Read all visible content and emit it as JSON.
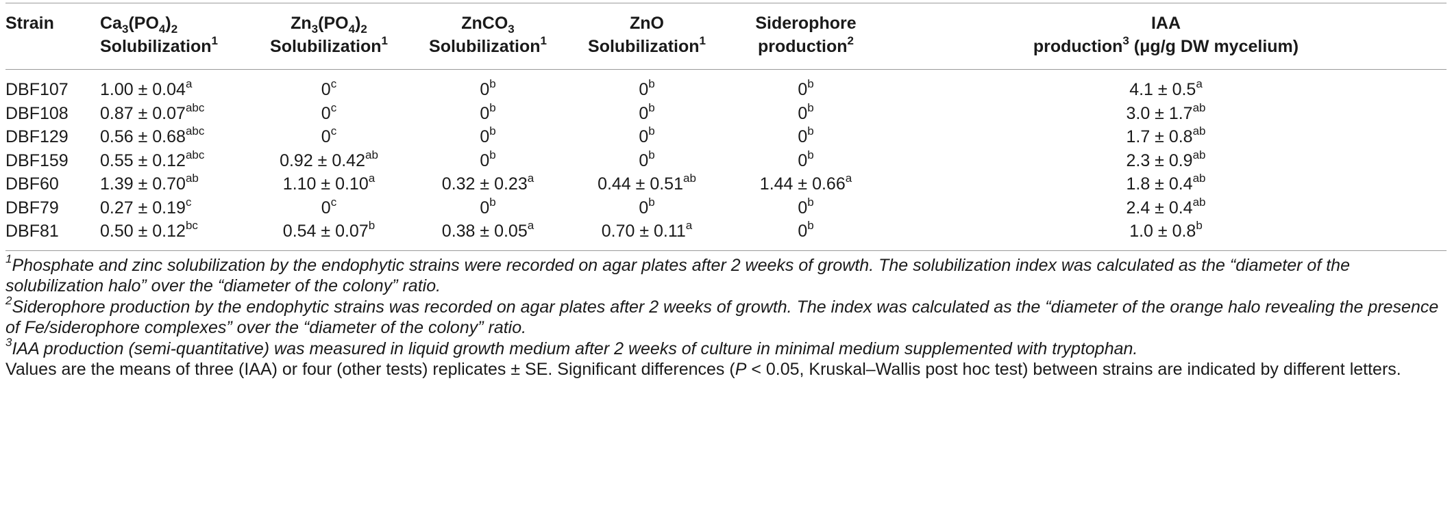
{
  "table": {
    "headers": [
      {
        "line1": "Strain",
        "line2": "",
        "sup": ""
      },
      {
        "line1_pre": "Ca",
        "line1_sub1": "3",
        "line1_mid": "(PO",
        "line1_sub2": "4",
        "line1_post": ")",
        "line1_sub3": "2",
        "line2": "Solubilization",
        "sup": "1"
      },
      {
        "line1_pre": "Zn",
        "line1_sub1": "3",
        "line1_mid": "(PO",
        "line1_sub2": "4",
        "line1_post": ")",
        "line1_sub3": "2",
        "line2": "Solubilization",
        "sup": "1"
      },
      {
        "line1_pre": "ZnCO",
        "line1_sub1": "3",
        "line2": "Solubilization",
        "sup": "1"
      },
      {
        "line1": "ZnO",
        "line2": "Solubilization",
        "sup": "1"
      },
      {
        "line1": "Siderophore",
        "line2": "production",
        "sup": "2"
      },
      {
        "line1": "IAA",
        "line2": "production",
        "sup": "3",
        "line2_post": " (μg/g DW mycelium)"
      }
    ],
    "rows": [
      {
        "strain": "DBF107",
        "cells": [
          {
            "v": "1.00 ± 0.04",
            "s": "a"
          },
          {
            "v": "0",
            "s": "c"
          },
          {
            "v": "0",
            "s": "b"
          },
          {
            "v": "0",
            "s": "b"
          },
          {
            "v": "0",
            "s": "b"
          },
          {
            "v": "4.1 ± 0.5",
            "s": "a"
          }
        ]
      },
      {
        "strain": "DBF108",
        "cells": [
          {
            "v": "0.87 ± 0.07",
            "s": "abc"
          },
          {
            "v": "0",
            "s": "c"
          },
          {
            "v": "0",
            "s": "b"
          },
          {
            "v": "0",
            "s": "b"
          },
          {
            "v": "0",
            "s": "b"
          },
          {
            "v": "3.0 ± 1.7",
            "s": "ab"
          }
        ]
      },
      {
        "strain": "DBF129",
        "cells": [
          {
            "v": "0.56 ± 0.68",
            "s": "abc"
          },
          {
            "v": "0",
            "s": "c"
          },
          {
            "v": "0",
            "s": "b"
          },
          {
            "v": "0",
            "s": "b"
          },
          {
            "v": "0",
            "s": "b"
          },
          {
            "v": "1.7 ± 0.8",
            "s": "ab"
          }
        ]
      },
      {
        "strain": "DBF159",
        "cells": [
          {
            "v": "0.55 ± 0.12",
            "s": "abc"
          },
          {
            "v": "0.92 ± 0.42",
            "s": "ab"
          },
          {
            "v": "0",
            "s": "b"
          },
          {
            "v": "0",
            "s": "b"
          },
          {
            "v": "0",
            "s": "b"
          },
          {
            "v": "2.3 ± 0.9",
            "s": "ab"
          }
        ]
      },
      {
        "strain": "DBF60",
        "cells": [
          {
            "v": "1.39 ± 0.70",
            "s": "ab"
          },
          {
            "v": "1.10 ± 0.10",
            "s": "a"
          },
          {
            "v": "0.32 ± 0.23",
            "s": "a"
          },
          {
            "v": "0.44 ± 0.51",
            "s": "ab"
          },
          {
            "v": "1.44 ± 0.66",
            "s": "a"
          },
          {
            "v": "1.8 ± 0.4",
            "s": "ab"
          }
        ]
      },
      {
        "strain": "DBF79",
        "cells": [
          {
            "v": "0.27 ± 0.19",
            "s": "c"
          },
          {
            "v": "0",
            "s": "c"
          },
          {
            "v": "0",
            "s": "b"
          },
          {
            "v": "0",
            "s": "b"
          },
          {
            "v": "0",
            "s": "b"
          },
          {
            "v": "2.4 ± 0.4",
            "s": "ab"
          }
        ]
      },
      {
        "strain": "DBF81",
        "cells": [
          {
            "v": "0.50 ± 0.12",
            "s": "bc"
          },
          {
            "v": "0.54 ± 0.07",
            "s": "b"
          },
          {
            "v": "0.38 ± 0.05",
            "s": "a"
          },
          {
            "v": "0.70 ± 0.11",
            "s": "a"
          },
          {
            "v": "0",
            "s": "b"
          },
          {
            "v": "1.0 ± 0.8",
            "s": "b"
          }
        ]
      }
    ]
  },
  "footnotes": [
    {
      "sup": "1",
      "text": "Phosphate and zinc solubilization by the endophytic strains were recorded on agar plates after 2 weeks of growth. The solubilization index was calculated as the “diameter of the solubilization halo” over the “diameter of the colony” ratio."
    },
    {
      "sup": "2",
      "text": "Siderophore production by the endophytic strains was recorded on agar plates after 2 weeks of growth. The index was calculated as the “diameter of the orange halo revealing the presence of Fe/siderophore complexes” over the “diameter of the colony” ratio."
    },
    {
      "sup": "3",
      "text": "IAA production (semi-quantitative) was measured in liquid growth medium after 2 weeks of culture in minimal medium supplemented with tryptophan."
    }
  ],
  "summary_note": {
    "part1": "Values are the means of three (IAA) or four (other tests) replicates ± SE. Significant differences (",
    "p_symbol": "P",
    "part2": " < 0.05, Kruskal–Wallis post hoc test) between strains are indicated by different letters."
  }
}
